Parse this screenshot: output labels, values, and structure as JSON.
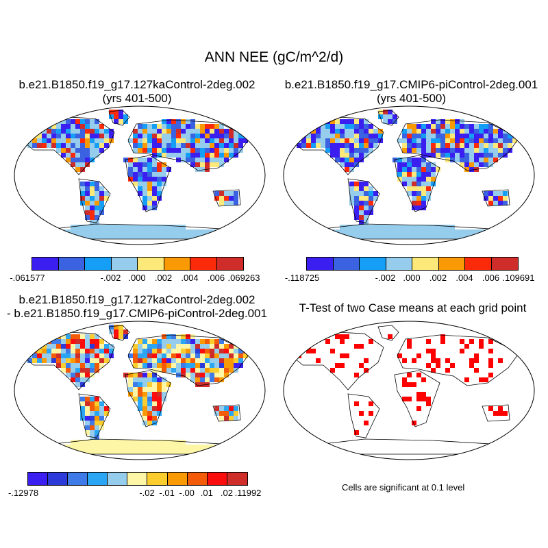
{
  "main_title": "ANN NEE (gC/m^2/d)",
  "panels": {
    "top_left": {
      "title_line1": "b.e21.B1850.f19_g17.127kaControl-2deg.002",
      "title_line2": "(yrs 401-500)"
    },
    "top_right": {
      "title_line1": "b.e21.B1850.f19_g17.CMIP6-piControl-2deg.001",
      "title_line2": "(yrs 401-500)"
    },
    "bottom_left": {
      "title_line1": "b.e21.B1850.f19_g17.127kaControl-2deg.002",
      "title_line2": "- b.e21.B1850.f19_g17.CMIP6-piControl-2deg.001"
    },
    "bottom_right": {
      "title_line1": "T-Test of two Case means at each grid point",
      "note": "Cells are significant at 0.1 level"
    }
  },
  "colorbars": {
    "top_left": {
      "colors": [
        "#3a1ff0",
        "#3b62e0",
        "#149ef5",
        "#97cdec",
        "#fce97a",
        "#f99a05",
        "#fb2a0b",
        "#cf2d2a"
      ],
      "labels": [
        "-.061577",
        "-.002",
        ".000",
        ".002",
        ".004",
        ".006",
        ".069263"
      ]
    },
    "top_right": {
      "colors": [
        "#3a1ff0",
        "#3b62e0",
        "#149ef5",
        "#97cdec",
        "#fce97a",
        "#f99a05",
        "#fb2a0b",
        "#cf2d2a"
      ],
      "labels": [
        "-.118725",
        "-.002",
        ".000",
        ".002",
        ".004",
        ".006",
        ".109691"
      ]
    },
    "bottom_left": {
      "colors": [
        "#3a1ff0",
        "#2b3ad8",
        "#3f7be8",
        "#2ba6f4",
        "#97cdec",
        "#fdf6a6",
        "#fccd2e",
        "#f99a05",
        "#f45b08",
        "#fb0d0d",
        "#cf2d2a"
      ],
      "labels": [
        "-.12978",
        "-.02",
        "-.01",
        "-.00",
        ".01",
        ".02",
        ".11992"
      ]
    }
  },
  "colors": {
    "ocean": "#ffffff",
    "coast": "#000000",
    "antarctica_blue": "#97cdec",
    "antarctica_yellow": "#fdf6a6",
    "significant": "#ff0000"
  }
}
